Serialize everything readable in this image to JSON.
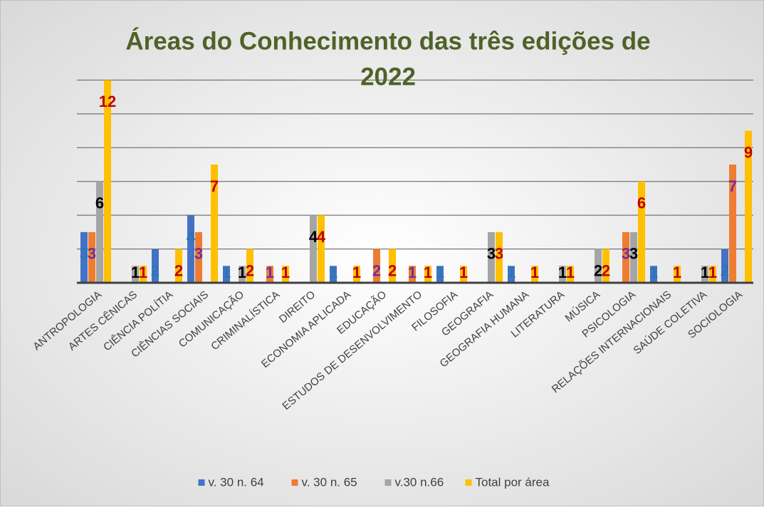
{
  "chart_data": {
    "type": "bar",
    "title_lines": [
      "Áreas do Conhecimento das três edições de",
      "2022"
    ],
    "categories": [
      "ANTROPOLOGIA",
      "ARTES CÊNICAS",
      "CIÊNCIA POLÍTIA",
      "CIÊNCIAS SOCIAIS",
      "COMUNICAÇÃO",
      "CRIMINALÍSTICA",
      "DIREITO",
      "ECONOMIA APLICADA",
      "EDUCAÇÃO",
      "ESTUDOS DE DESENVOLVIMENTO",
      "FILOSOFIA",
      "GEOGRAFIA",
      "GEOGRAFIA HUMANA",
      "LITERATURA",
      "MÚSICA",
      "PSICOLOGIA",
      "RELAÇÕES INTERNACIONAIS",
      "SAÚDE COLETIVA",
      "SOCIOLOGIA"
    ],
    "series": [
      {
        "name": "v. 30 n. 64",
        "color": "#4472c4",
        "label_color": "#2e75b6",
        "values": [
          3,
          null,
          2,
          4,
          1,
          null,
          null,
          1,
          null,
          null,
          1,
          null,
          1,
          null,
          null,
          null,
          1,
          null,
          2
        ]
      },
      {
        "name": "v. 30 n. 65",
        "color": "#ed7d31",
        "label_color": "#7030a0",
        "values": [
          3,
          null,
          null,
          3,
          null,
          1,
          null,
          null,
          2,
          1,
          null,
          null,
          null,
          null,
          null,
          3,
          null,
          null,
          7
        ]
      },
      {
        "name": "v.30 n.66",
        "color": "#a5a5a5",
        "label_color": "#000000",
        "values": [
          6,
          1,
          null,
          null,
          1,
          null,
          4,
          null,
          null,
          null,
          null,
          3,
          null,
          1,
          2,
          3,
          null,
          1,
          null
        ]
      },
      {
        "name": "Total por área",
        "color": "#ffc000",
        "label_color": "#c00000",
        "values": [
          12,
          1,
          2,
          7,
          2,
          1,
          4,
          1,
          2,
          1,
          1,
          3,
          1,
          1,
          2,
          6,
          1,
          1,
          9
        ]
      }
    ],
    "ylim": [
      0,
      14
    ],
    "yticks": [
      0,
      2,
      4,
      6,
      8,
      10,
      12,
      14
    ],
    "grid": true,
    "legend": "bottom"
  }
}
